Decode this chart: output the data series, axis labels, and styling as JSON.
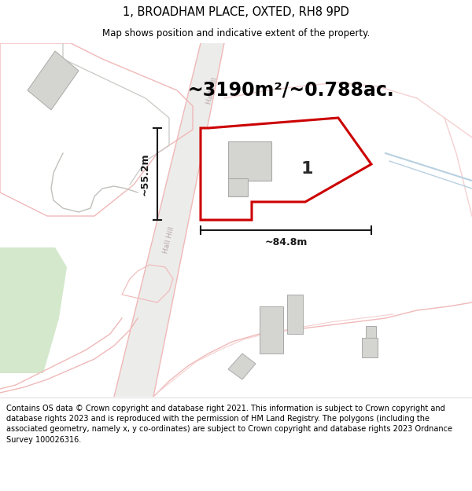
{
  "title": "1, BROADHAM PLACE, OXTED, RH8 9PD",
  "subtitle": "Map shows position and indicative extent of the property.",
  "area_text": "~3190m²/~0.788ac.",
  "dim_width": "~84.8m",
  "dim_height": "~55.2m",
  "plot_label": "1",
  "footer_text": "Contains OS data © Crown copyright and database right 2021. This information is subject to Crown copyright and database rights 2023 and is reproduced with the permission of HM Land Registry. The polygons (including the associated geometry, namely x, y co-ordinates) are subject to Crown copyright and database rights 2023 Ordnance Survey 100026316.",
  "map_bg": "#f7f7f5",
  "road_pink": "#f0b8b8",
  "road_pink_light": "#f5d0d0",
  "road_gray_fill": "#e8e8e4",
  "plot_fill": "#ffffff",
  "plot_edge_color": "#cc0000",
  "building_fill": "#d4d4d0",
  "building_edge": "#aaaaaa",
  "dim_line_color": "#1a1a1a",
  "title_color": "#000000",
  "footer_color": "#000000",
  "area_text_color": "#000000",
  "green_area_color": "#d4e8cc",
  "water_color": "#b8d0e0",
  "road_text_color": "#b8a8a8"
}
